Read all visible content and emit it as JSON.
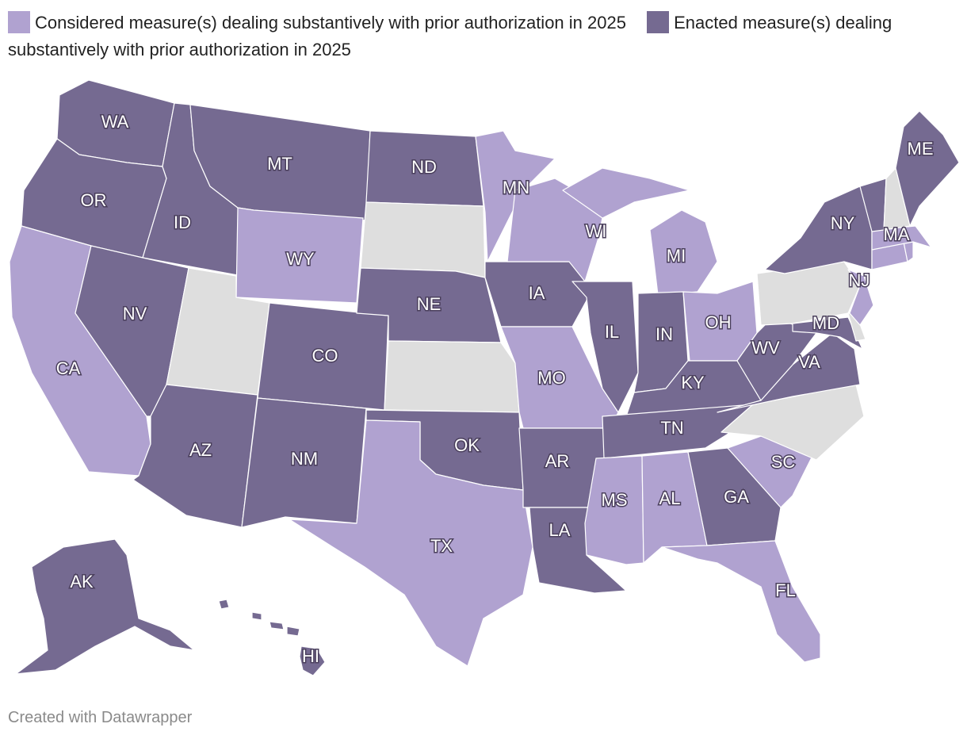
{
  "legend": {
    "considered": {
      "label": "Considered measure(s) dealing substantively with prior authorization in 2025",
      "color": "#b0a2d0"
    },
    "enacted": {
      "label": "Enacted measure(s) dealing substantively with prior authorization in 2025",
      "color": "#756a91"
    }
  },
  "no_action_color": "#dedede",
  "footer": "Created with Datawrapper",
  "states": [
    {
      "abbr": "WA",
      "status": "enacted"
    },
    {
      "abbr": "OR",
      "status": "enacted"
    },
    {
      "abbr": "CA",
      "status": "considered"
    },
    {
      "abbr": "ID",
      "status": "enacted"
    },
    {
      "abbr": "NV",
      "status": "enacted"
    },
    {
      "abbr": "MT",
      "status": "enacted"
    },
    {
      "abbr": "WY",
      "status": "considered"
    },
    {
      "abbr": "UT",
      "status": "none"
    },
    {
      "abbr": "AZ",
      "status": "enacted"
    },
    {
      "abbr": "CO",
      "status": "enacted"
    },
    {
      "abbr": "NM",
      "status": "enacted"
    },
    {
      "abbr": "ND",
      "status": "enacted"
    },
    {
      "abbr": "SD",
      "status": "none"
    },
    {
      "abbr": "NE",
      "status": "enacted"
    },
    {
      "abbr": "KS",
      "status": "none"
    },
    {
      "abbr": "OK",
      "status": "enacted"
    },
    {
      "abbr": "TX",
      "status": "considered"
    },
    {
      "abbr": "MN",
      "status": "considered"
    },
    {
      "abbr": "IA",
      "status": "enacted"
    },
    {
      "abbr": "MO",
      "status": "considered"
    },
    {
      "abbr": "AR",
      "status": "enacted"
    },
    {
      "abbr": "LA",
      "status": "enacted"
    },
    {
      "abbr": "WI",
      "status": "considered"
    },
    {
      "abbr": "IL",
      "status": "enacted"
    },
    {
      "abbr": "MI",
      "status": "considered"
    },
    {
      "abbr": "IN",
      "status": "enacted"
    },
    {
      "abbr": "OH",
      "status": "considered"
    },
    {
      "abbr": "KY",
      "status": "enacted"
    },
    {
      "abbr": "TN",
      "status": "enacted"
    },
    {
      "abbr": "MS",
      "status": "considered"
    },
    {
      "abbr": "AL",
      "status": "considered"
    },
    {
      "abbr": "GA",
      "status": "enacted"
    },
    {
      "abbr": "FL",
      "status": "considered"
    },
    {
      "abbr": "SC",
      "status": "considered"
    },
    {
      "abbr": "NC",
      "status": "none"
    },
    {
      "abbr": "VA",
      "status": "enacted"
    },
    {
      "abbr": "WV",
      "status": "enacted"
    },
    {
      "abbr": "MD",
      "status": "enacted"
    },
    {
      "abbr": "DE",
      "status": "none"
    },
    {
      "abbr": "PA",
      "status": "none"
    },
    {
      "abbr": "NJ",
      "status": "considered"
    },
    {
      "abbr": "NY",
      "status": "enacted"
    },
    {
      "abbr": "CT",
      "status": "considered"
    },
    {
      "abbr": "RI",
      "status": "considered"
    },
    {
      "abbr": "MA",
      "status": "considered"
    },
    {
      "abbr": "VT",
      "status": "enacted"
    },
    {
      "abbr": "NH",
      "status": "none"
    },
    {
      "abbr": "ME",
      "status": "enacted"
    },
    {
      "abbr": "AK",
      "status": "enacted"
    },
    {
      "abbr": "HI",
      "status": "enacted"
    }
  ]
}
